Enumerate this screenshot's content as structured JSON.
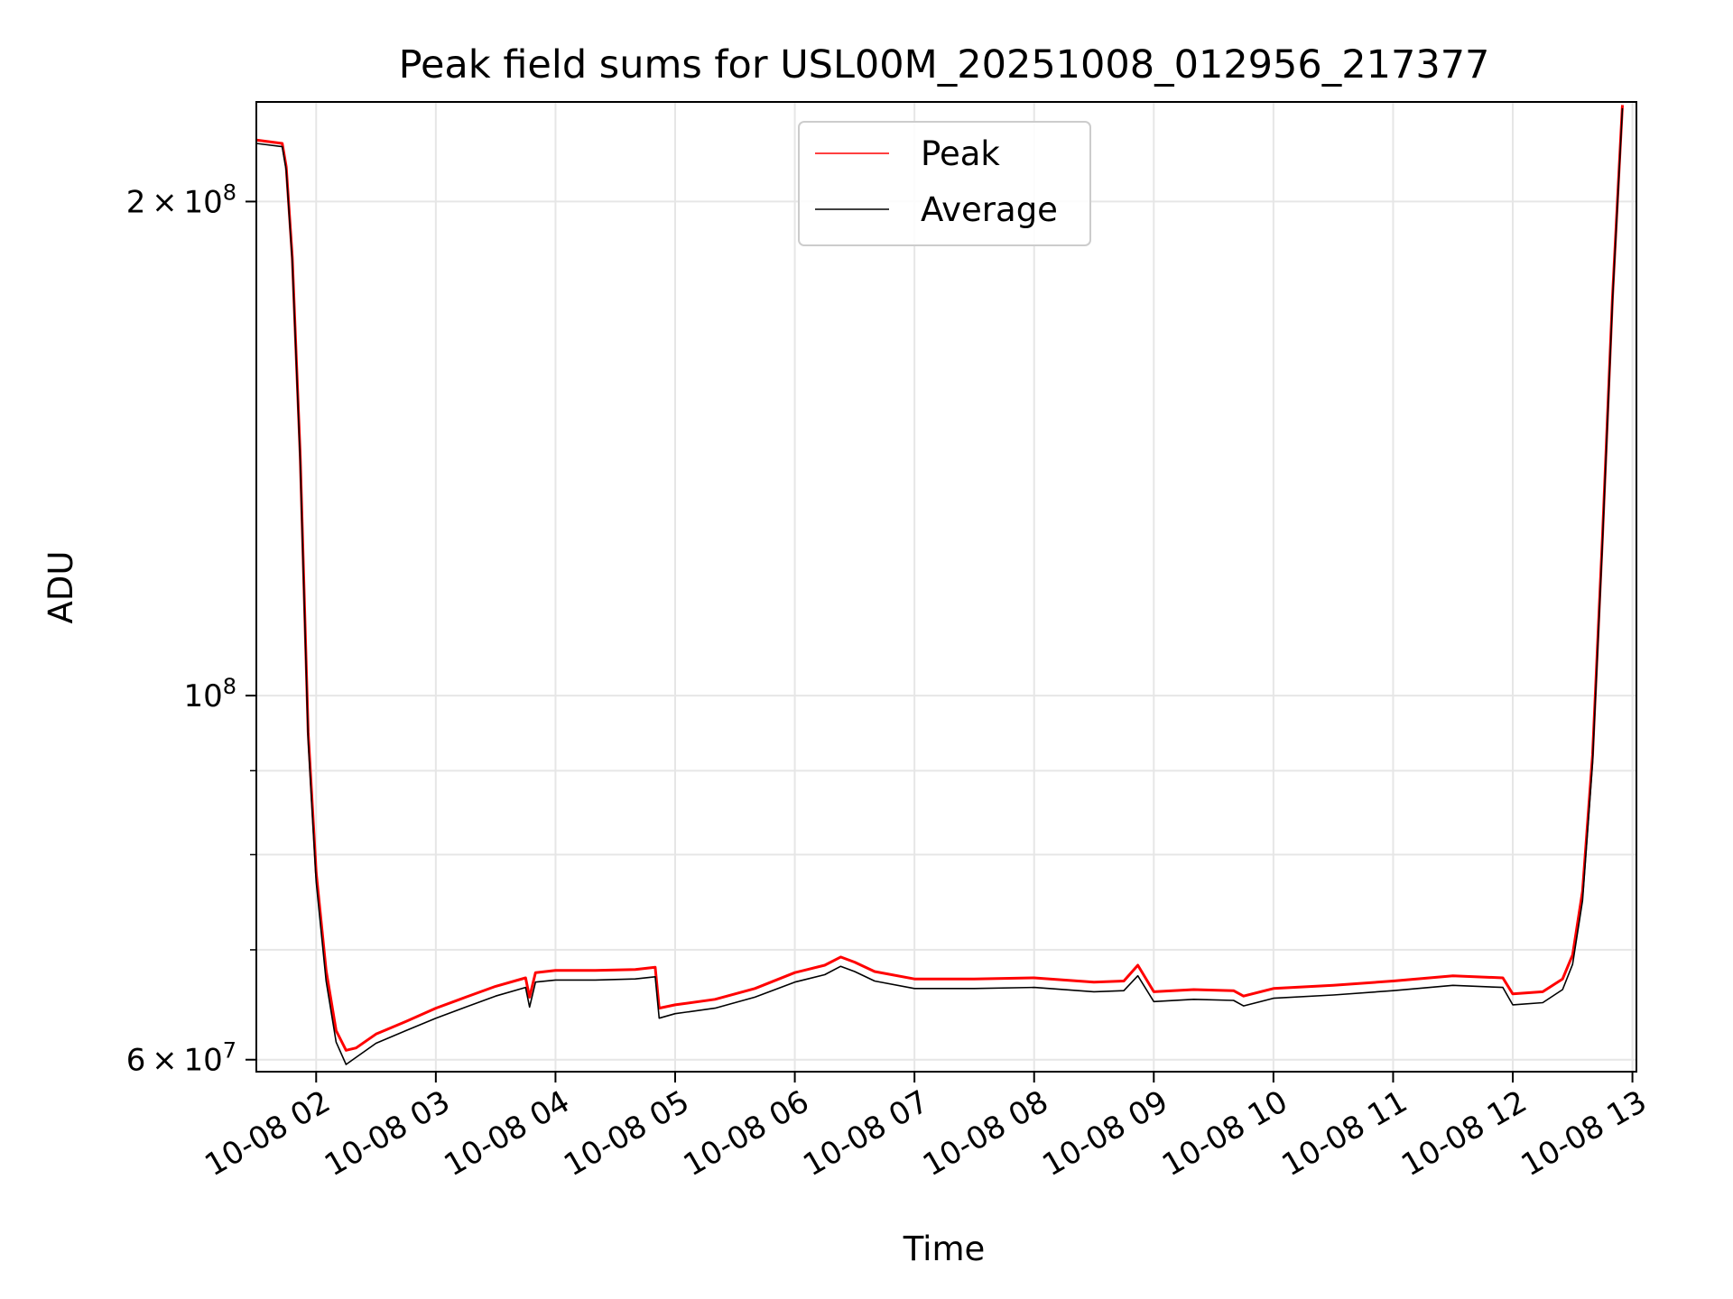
{
  "chart_data": {
    "type": "line",
    "title": "Peak field sums for USL00M_20251008_012956_217377",
    "xlabel": "Time",
    "ylabel": "ADU",
    "xlim": [
      "2025-10-08T01:30",
      "2025-10-08T13:02"
    ],
    "ylim": [
      59000000,
      230000000
    ],
    "yscale": "log",
    "grid": true,
    "legend_position": "upper center",
    "x_ticks": [
      "10-08 02",
      "10-08 03",
      "10-08 04",
      "10-08 05",
      "10-08 06",
      "10-08 07",
      "10-08 08",
      "10-08 09",
      "10-08 10",
      "10-08 11",
      "10-08 12",
      "10-08 13"
    ],
    "y_tick_labels": [
      {
        "value": 200000000,
        "mantissa": "2",
        "exponent": "8",
        "times": "×"
      },
      {
        "value": 100000000,
        "mantissa": "",
        "exponent": "8",
        "times": ""
      },
      {
        "value": 60000000,
        "mantissa": "6",
        "exponent": "7",
        "times": "×"
      }
    ],
    "y_minor_ticks": [
      70000000,
      80000000,
      90000000
    ],
    "series": [
      {
        "name": "Peak",
        "color": "#ff0000",
        "x": [
          "2025-10-08T01:30",
          "2025-10-08T01:43",
          "2025-10-08T01:45",
          "2025-10-08T01:48",
          "2025-10-08T01:52",
          "2025-10-08T01:56",
          "2025-10-08T02:00",
          "2025-10-08T02:05",
          "2025-10-08T02:10",
          "2025-10-08T02:15",
          "2025-10-08T02:20",
          "2025-10-08T02:30",
          "2025-10-08T02:45",
          "2025-10-08T03:00",
          "2025-10-08T03:15",
          "2025-10-08T03:30",
          "2025-10-08T03:45",
          "2025-10-08T03:47",
          "2025-10-08T03:50",
          "2025-10-08T04:00",
          "2025-10-08T04:20",
          "2025-10-08T04:40",
          "2025-10-08T04:50",
          "2025-10-08T04:52",
          "2025-10-08T05:00",
          "2025-10-08T05:20",
          "2025-10-08T05:40",
          "2025-10-08T06:00",
          "2025-10-08T06:15",
          "2025-10-08T06:23",
          "2025-10-08T06:30",
          "2025-10-08T06:40",
          "2025-10-08T07:00",
          "2025-10-08T07:30",
          "2025-10-08T08:00",
          "2025-10-08T08:30",
          "2025-10-08T08:45",
          "2025-10-08T08:52",
          "2025-10-08T09:00",
          "2025-10-08T09:20",
          "2025-10-08T09:40",
          "2025-10-08T09:45",
          "2025-10-08T10:00",
          "2025-10-08T10:30",
          "2025-10-08T11:00",
          "2025-10-08T11:30",
          "2025-10-08T11:55",
          "2025-10-08T12:00",
          "2025-10-08T12:15",
          "2025-10-08T12:25",
          "2025-10-08T12:30",
          "2025-10-08T12:35",
          "2025-10-08T12:40",
          "2025-10-08T12:45",
          "2025-10-08T12:50",
          "2025-10-08T12:55"
        ],
        "values": [
          218000000,
          217000000,
          210000000,
          185000000,
          140000000,
          95000000,
          78000000,
          68000000,
          62500000,
          60800000,
          61000000,
          62200000,
          63300000,
          64500000,
          65500000,
          66500000,
          67300000,
          65500000,
          67800000,
          68000000,
          68000000,
          68100000,
          68300000,
          64500000,
          64800000,
          65300000,
          66300000,
          67800000,
          68500000,
          69300000,
          68800000,
          67900000,
          67200000,
          67200000,
          67300000,
          66900000,
          67000000,
          68500000,
          66000000,
          66200000,
          66100000,
          65600000,
          66300000,
          66600000,
          67000000,
          67500000,
          67300000,
          65800000,
          66000000,
          67200000,
          69500000,
          76000000,
          92000000,
          125000000,
          175000000,
          229000000
        ]
      },
      {
        "name": "Average",
        "color": "#000000",
        "x": [
          "2025-10-08T01:30",
          "2025-10-08T01:43",
          "2025-10-08T01:45",
          "2025-10-08T01:48",
          "2025-10-08T01:52",
          "2025-10-08T01:56",
          "2025-10-08T02:00",
          "2025-10-08T02:05",
          "2025-10-08T02:10",
          "2025-10-08T02:15",
          "2025-10-08T02:20",
          "2025-10-08T02:30",
          "2025-10-08T02:45",
          "2025-10-08T03:00",
          "2025-10-08T03:15",
          "2025-10-08T03:30",
          "2025-10-08T03:45",
          "2025-10-08T03:47",
          "2025-10-08T03:50",
          "2025-10-08T04:00",
          "2025-10-08T04:20",
          "2025-10-08T04:40",
          "2025-10-08T04:50",
          "2025-10-08T04:52",
          "2025-10-08T05:00",
          "2025-10-08T05:20",
          "2025-10-08T05:40",
          "2025-10-08T06:00",
          "2025-10-08T06:15",
          "2025-10-08T06:23",
          "2025-10-08T06:30",
          "2025-10-08T06:40",
          "2025-10-08T07:00",
          "2025-10-08T07:30",
          "2025-10-08T08:00",
          "2025-10-08T08:30",
          "2025-10-08T08:45",
          "2025-10-08T08:52",
          "2025-10-08T09:00",
          "2025-10-08T09:20",
          "2025-10-08T09:40",
          "2025-10-08T09:45",
          "2025-10-08T10:00",
          "2025-10-08T10:30",
          "2025-10-08T11:00",
          "2025-10-08T11:30",
          "2025-10-08T11:55",
          "2025-10-08T12:00",
          "2025-10-08T12:15",
          "2025-10-08T12:25",
          "2025-10-08T12:30",
          "2025-10-08T12:35",
          "2025-10-08T12:40",
          "2025-10-08T12:45",
          "2025-10-08T12:50",
          "2025-10-08T12:55"
        ],
        "values": [
          217000000,
          216000000,
          209000000,
          184000000,
          139000000,
          94000000,
          77000000,
          67000000,
          61500000,
          59600000,
          60200000,
          61400000,
          62500000,
          63600000,
          64600000,
          65600000,
          66400000,
          64600000,
          66900000,
          67100000,
          67100000,
          67200000,
          67400000,
          63600000,
          64000000,
          64500000,
          65500000,
          66900000,
          67600000,
          68400000,
          67900000,
          67000000,
          66300000,
          66300000,
          66400000,
          66000000,
          66100000,
          67500000,
          65100000,
          65300000,
          65200000,
          64700000,
          65400000,
          65700000,
          66100000,
          66600000,
          66400000,
          64800000,
          65000000,
          66200000,
          68600000,
          75000000,
          91000000,
          124000000,
          174000000,
          228000000
        ]
      }
    ]
  }
}
